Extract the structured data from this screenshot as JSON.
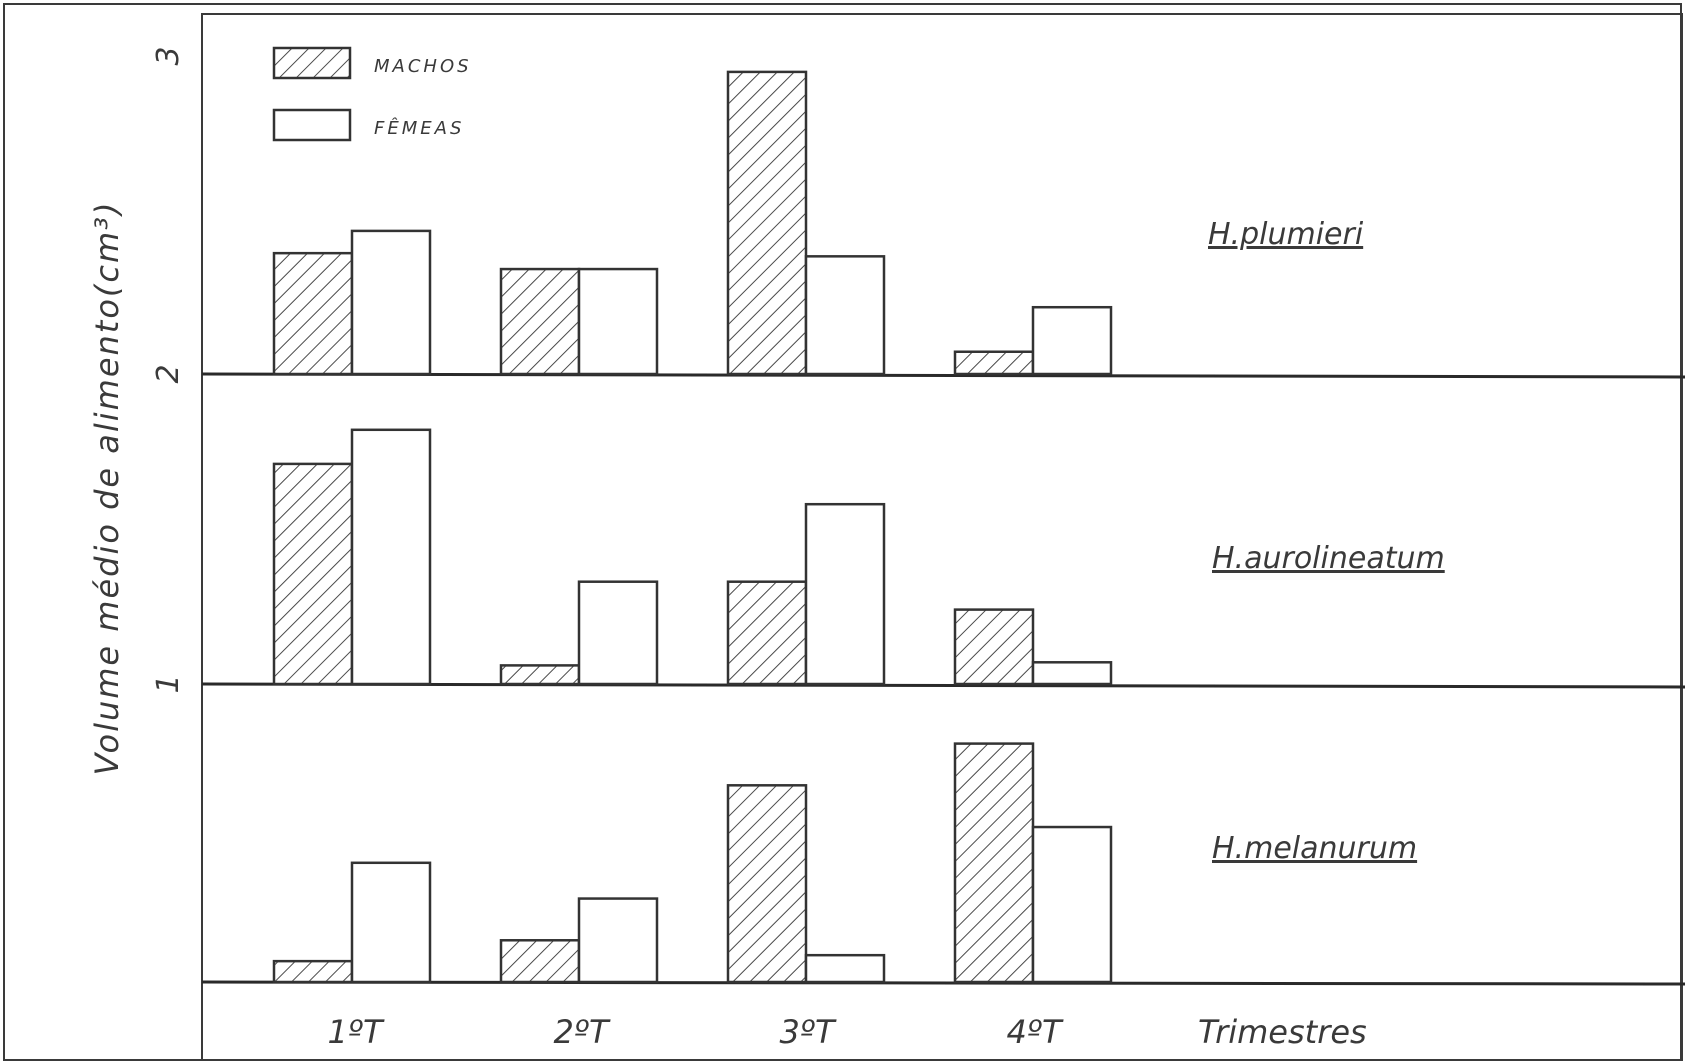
{
  "chart_data": {
    "type": "bar",
    "ylabel": "Volume médio de alimento(cm³)",
    "xlabel": "Trimestres",
    "categories": [
      "1ºT",
      "2ºT",
      "3ºT",
      "4ºT"
    ],
    "legend": {
      "position": "top-left",
      "entries": [
        {
          "name": "MACHOS",
          "pattern": "hatched"
        },
        {
          "name": "FÊMEAS",
          "pattern": "open"
        }
      ]
    },
    "yticks": [
      "3",
      "2",
      "1"
    ],
    "panels": [
      {
        "title": "H.plumieri",
        "ylim": [
          0,
          1
        ],
        "series": [
          {
            "name": "MACHOS",
            "values": [
              0.38,
              0.33,
              0.95,
              0.07
            ]
          },
          {
            "name": "FÊMEAS",
            "values": [
              0.45,
              0.33,
              0.37,
              0.21
            ]
          }
        ]
      },
      {
        "title": "H.aurolineatum",
        "ylim": [
          0,
          1
        ],
        "series": [
          {
            "name": "MACHOS",
            "values": [
              0.71,
              0.06,
              0.33,
              0.24
            ]
          },
          {
            "name": "FÊMEAS",
            "values": [
              0.82,
              0.33,
              0.58,
              0.07
            ]
          }
        ]
      },
      {
        "title": "H.melanurum",
        "ylim": [
          0,
          1
        ],
        "series": [
          {
            "name": "MACHOS",
            "values": [
              0.07,
              0.14,
              0.66,
              0.8
            ]
          },
          {
            "name": "FÊMEAS",
            "values": [
              0.4,
              0.28,
              0.09,
              0.52
            ]
          }
        ]
      }
    ]
  }
}
